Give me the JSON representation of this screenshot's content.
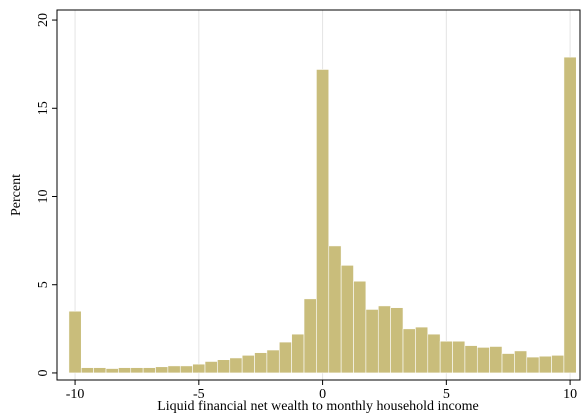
{
  "chart_data": {
    "type": "histogram",
    "xlabel": "Liquid financial net wealth to monthly household income",
    "ylabel": "Percent",
    "bins": [
      -10.25,
      -9.75,
      -9.25,
      -8.75,
      -8.25,
      -7.75,
      -7.25,
      -6.75,
      -6.25,
      -5.75,
      -5.25,
      -4.75,
      -4.25,
      -3.75,
      -3.25,
      -2.75,
      -2.25,
      -1.75,
      -1.25,
      -0.75,
      -0.25,
      0.25,
      0.75,
      1.25,
      1.75,
      2.25,
      2.75,
      3.25,
      3.75,
      4.25,
      4.75,
      5.25,
      5.75,
      6.25,
      6.75,
      7.25,
      7.75,
      8.25,
      8.75,
      9.25,
      9.75,
      10.25
    ],
    "values": [
      3.5,
      0.3,
      0.3,
      0.25,
      0.3,
      0.3,
      0.3,
      0.35,
      0.4,
      0.4,
      0.5,
      0.65,
      0.75,
      0.85,
      1.0,
      1.15,
      1.3,
      1.75,
      2.2,
      4.2,
      17.2,
      7.2,
      6.1,
      5.2,
      3.6,
      3.8,
      3.7,
      2.5,
      2.6,
      2.2,
      1.8,
      1.8,
      1.55,
      1.45,
      1.5,
      1.1,
      1.25,
      0.9,
      0.95,
      1.0,
      17.9
    ],
    "color": "#c9bd7b",
    "xlim": [
      -10.73,
      10.4
    ],
    "xticks": [
      -10,
      -5,
      0,
      5,
      10
    ],
    "ylim": [
      -0.4,
      20.57
    ],
    "yticks": [
      0,
      5,
      10,
      15,
      20
    ],
    "grid": "x"
  }
}
